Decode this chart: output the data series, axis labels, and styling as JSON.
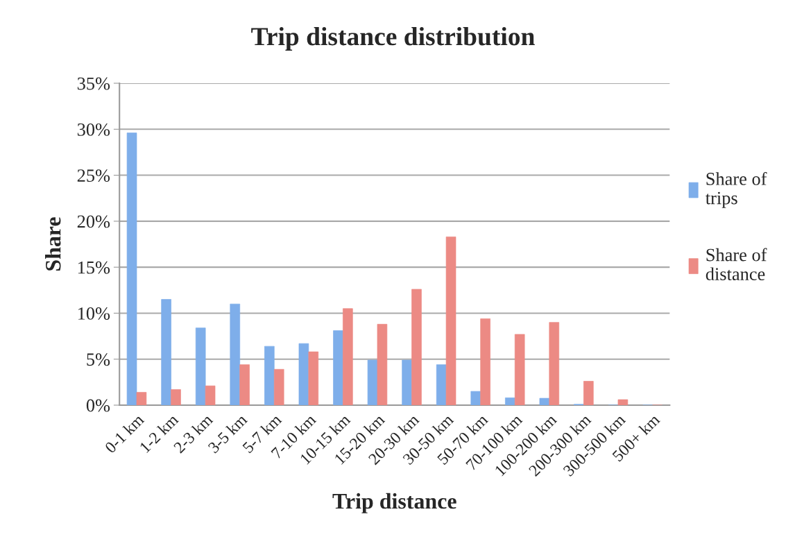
{
  "chart_data": {
    "type": "bar",
    "title": "Trip distance distribution",
    "xlabel": "Trip distance",
    "ylabel": "Share",
    "categories": [
      "0-1 km",
      "1-2 km",
      "2-3 km",
      "3-5 km",
      "5-7 km",
      "7-10 km",
      "10-15 km",
      "15-20 km",
      "20-30 km",
      "30-50 km",
      "50-70 km",
      "70-100 km",
      "100-200 km",
      "200-300 km",
      "300-500 km",
      "500+ km"
    ],
    "series": [
      {
        "name": "Share of trips",
        "color": "#7eaeea",
        "values": [
          29.6,
          11.5,
          8.4,
          11.0,
          6.4,
          6.7,
          8.1,
          4.9,
          4.9,
          4.4,
          1.5,
          0.8,
          0.75,
          0.1,
          0,
          0
        ]
      },
      {
        "name": "Share of distance",
        "color": "#ec8a84",
        "values": [
          1.4,
          1.7,
          2.1,
          4.4,
          3.9,
          5.8,
          10.5,
          8.8,
          12.6,
          18.3,
          9.4,
          7.7,
          9.0,
          2.6,
          0.6,
          0
        ]
      }
    ],
    "ylim": [
      0,
      35
    ],
    "yticks": [
      {
        "value": 0,
        "label": "0%"
      },
      {
        "value": 5,
        "label": "5%"
      },
      {
        "value": 10,
        "label": "10%"
      },
      {
        "value": 15,
        "label": "15%"
      },
      {
        "value": 20,
        "label": "20%"
      },
      {
        "value": 25,
        "label": "25%"
      },
      {
        "value": 30,
        "label": "30%"
      },
      {
        "value": 35,
        "label": "35%"
      }
    ],
    "grid": "y",
    "legend": "right"
  }
}
